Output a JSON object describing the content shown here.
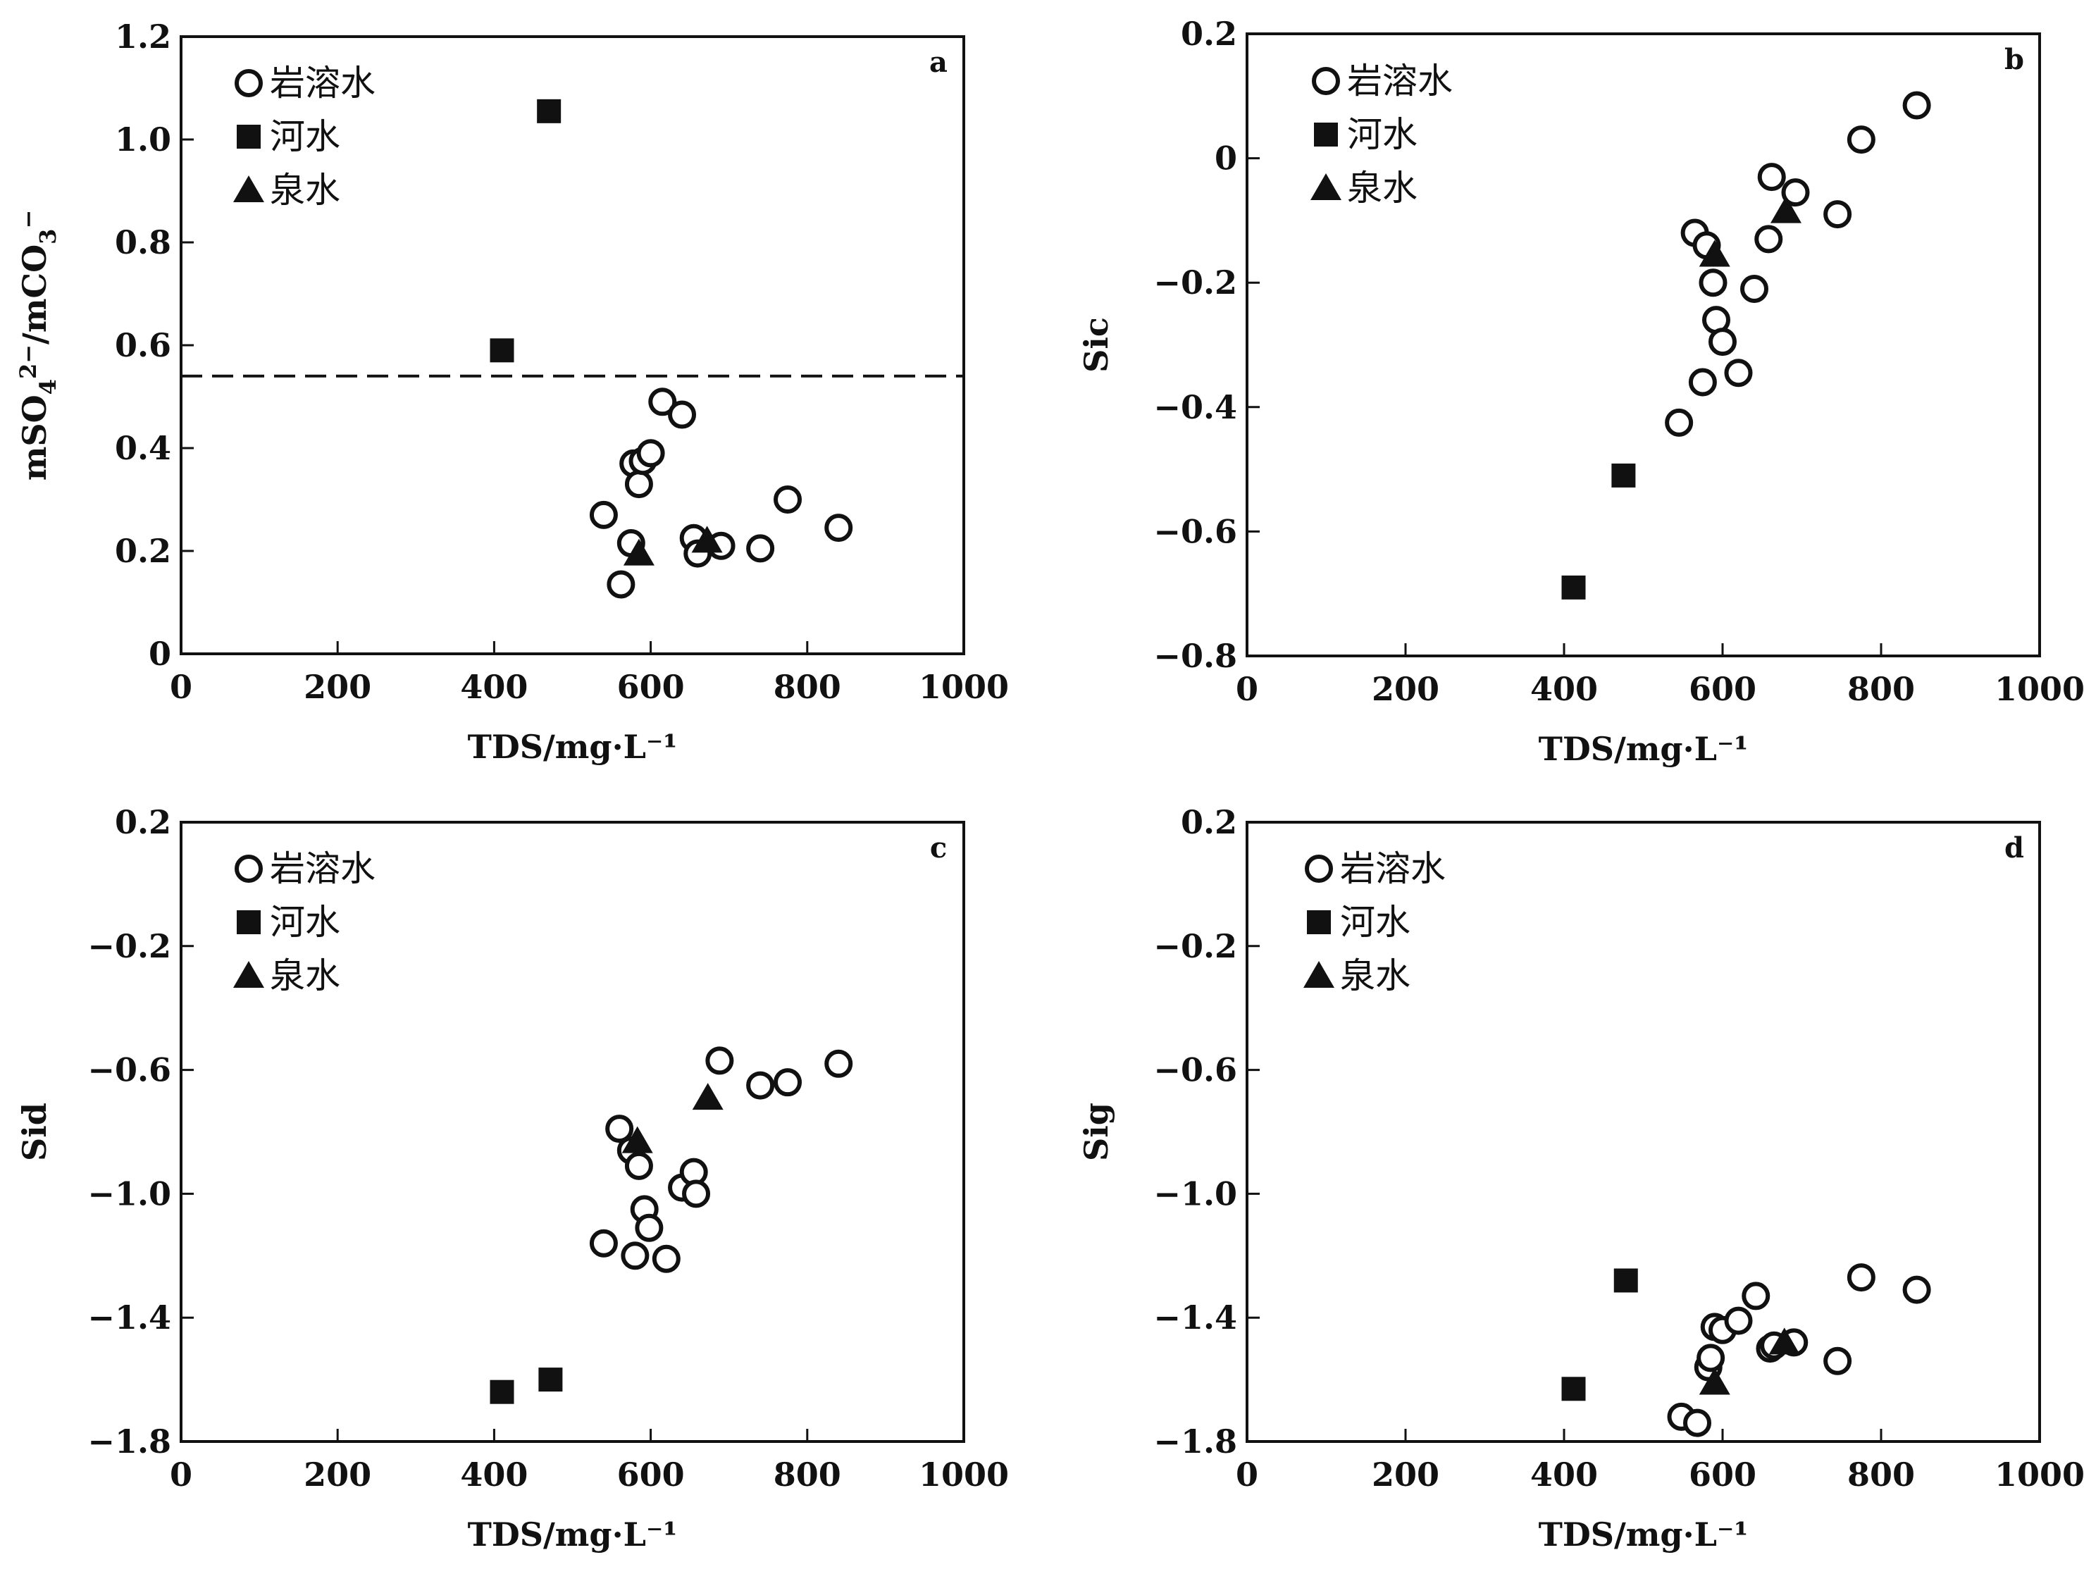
{
  "markers": {
    "岩溶水": "open-circle",
    "河水": "filled-square",
    "泉水": "filled-triangle"
  },
  "colors": {
    "ink": "#111111",
    "background": "#ffffff"
  },
  "chart_data": [
    {
      "id": "a",
      "type": "scatter",
      "panel_letter": "a",
      "xlabel": "TDS/mg·L⁻¹",
      "ylabel_parts": [
        "mSO",
        "4",
        "2−",
        "/mCO",
        "3",
        "−"
      ],
      "xlim": [
        0,
        1000
      ],
      "ylim": [
        0,
        1.2
      ],
      "xticks": [
        "0",
        "200",
        "400",
        "600",
        "800",
        "1000"
      ],
      "yticks": [
        "0",
        "0.2",
        "0.4",
        "0.6",
        "0.8",
        "1.0",
        "1.2"
      ],
      "ytick_values": [
        0,
        0.2,
        0.4,
        0.6,
        0.8,
        1.0,
        1.2
      ],
      "reference_line_y": 0.54,
      "legend": [
        "岩溶水",
        "河水",
        "泉水"
      ],
      "legend_position": "top-left",
      "grid": false,
      "series": [
        {
          "name": "岩溶水",
          "marker": "open-circle",
          "x": [
            540,
            562,
            575,
            578,
            585,
            590,
            600,
            615,
            640,
            655,
            660,
            690,
            740,
            775,
            840
          ],
          "y": [
            0.27,
            0.135,
            0.215,
            0.37,
            0.33,
            0.375,
            0.39,
            0.49,
            0.465,
            0.225,
            0.195,
            0.21,
            0.205,
            0.3,
            0.245
          ]
        },
        {
          "name": "河水",
          "marker": "filled-square",
          "x": [
            410,
            470
          ],
          "y": [
            0.59,
            1.055
          ]
        },
        {
          "name": "泉水",
          "marker": "filled-triangle",
          "x": [
            585,
            672
          ],
          "y": [
            0.195,
            0.22
          ]
        }
      ]
    },
    {
      "id": "b",
      "type": "scatter",
      "panel_letter": "b",
      "xlabel": "TDS/mg·L⁻¹",
      "ylabel": "Sic",
      "xlim": [
        0,
        1000
      ],
      "ylim": [
        -0.8,
        0.2
      ],
      "xticks": [
        "0",
        "200",
        "400",
        "600",
        "800",
        "1000"
      ],
      "yticks": [
        "−0.8",
        "−0.6",
        "−0.4",
        "−0.2",
        "0",
        "0.2"
      ],
      "ytick_values": [
        -0.8,
        -0.6,
        -0.4,
        -0.2,
        0,
        0.2
      ],
      "legend": [
        "岩溶水",
        "河水",
        "泉水"
      ],
      "legend_position": "top-left",
      "grid": false,
      "series": [
        {
          "name": "岩溶水",
          "marker": "open-circle",
          "x": [
            545,
            565,
            575,
            580,
            588,
            592,
            600,
            620,
            640,
            658,
            662,
            692,
            745,
            775,
            845
          ],
          "y": [
            -0.425,
            -0.12,
            -0.36,
            -0.14,
            -0.2,
            -0.26,
            -0.295,
            -0.345,
            -0.21,
            -0.13,
            -0.03,
            -0.055,
            -0.09,
            0.03,
            0.085
          ]
        },
        {
          "name": "河水",
          "marker": "filled-square",
          "x": [
            412,
            475
          ],
          "y": [
            -0.69,
            -0.51
          ]
        },
        {
          "name": "泉水",
          "marker": "filled-triangle",
          "x": [
            590,
            680
          ],
          "y": [
            -0.155,
            -0.085
          ]
        }
      ]
    },
    {
      "id": "c",
      "type": "scatter",
      "panel_letter": "c",
      "xlabel": "TDS/mg·L⁻¹",
      "ylabel": "Sid",
      "xlim": [
        0,
        1000
      ],
      "ylim": [
        -1.8,
        0.2
      ],
      "xticks": [
        "0",
        "200",
        "400",
        "600",
        "800",
        "1000"
      ],
      "yticks": [
        "−1.8",
        "−1.4",
        "−1.0",
        "−0.6",
        "−0.2",
        "0.2"
      ],
      "ytick_values": [
        -1.8,
        -1.4,
        -1.0,
        -0.6,
        -0.2,
        0.2
      ],
      "legend": [
        "岩溶水",
        "河水",
        "泉水"
      ],
      "legend_position": "top-left",
      "grid": false,
      "series": [
        {
          "name": "岩溶水",
          "marker": "open-circle",
          "x": [
            540,
            560,
            575,
            580,
            585,
            592,
            598,
            620,
            640,
            655,
            658,
            688,
            740,
            775,
            840
          ],
          "y": [
            -1.16,
            -0.79,
            -0.86,
            -1.2,
            -0.91,
            -1.05,
            -1.11,
            -1.21,
            -0.98,
            -0.93,
            -1.0,
            -0.57,
            -0.65,
            -0.64,
            -0.58
          ]
        },
        {
          "name": "河水",
          "marker": "filled-square",
          "x": [
            410,
            472
          ],
          "y": [
            -1.64,
            -1.6
          ]
        },
        {
          "name": "泉水",
          "marker": "filled-triangle",
          "x": [
            583,
            673
          ],
          "y": [
            -0.83,
            -0.69
          ]
        }
      ]
    },
    {
      "id": "d",
      "type": "scatter",
      "panel_letter": "d",
      "xlabel": "TDS/mg·L⁻¹",
      "ylabel": "Sig",
      "xlim": [
        0,
        1000
      ],
      "ylim": [
        -1.8,
        0.2
      ],
      "xticks": [
        "0",
        "200",
        "400",
        "600",
        "800",
        "1000"
      ],
      "yticks": [
        "−1.8",
        "−1.4",
        "−1.0",
        "−0.6",
        "−0.2",
        "0.2"
      ],
      "ytick_values": [
        -1.8,
        -1.4,
        -1.0,
        -0.6,
        -0.2,
        0.2
      ],
      "legend": [
        "岩溶水",
        "河水",
        "泉水"
      ],
      "legend_position": "top-left",
      "grid": false,
      "series": [
        {
          "name": "岩溶水",
          "marker": "open-circle",
          "x": [
            548,
            568,
            582,
            585,
            590,
            600,
            620,
            642,
            660,
            665,
            690,
            745,
            775,
            845
          ],
          "y": [
            -1.72,
            -1.74,
            -1.56,
            -1.53,
            -1.43,
            -1.44,
            -1.41,
            -1.33,
            -1.5,
            -1.49,
            -1.48,
            -1.54,
            -1.27,
            -1.31
          ]
        },
        {
          "name": "河水",
          "marker": "filled-square",
          "x": [
            412,
            478
          ],
          "y": [
            -1.63,
            -1.28
          ]
        },
        {
          "name": "泉水",
          "marker": "filled-triangle",
          "x": [
            590,
            678
          ],
          "y": [
            -1.61,
            -1.48
          ]
        }
      ]
    }
  ]
}
